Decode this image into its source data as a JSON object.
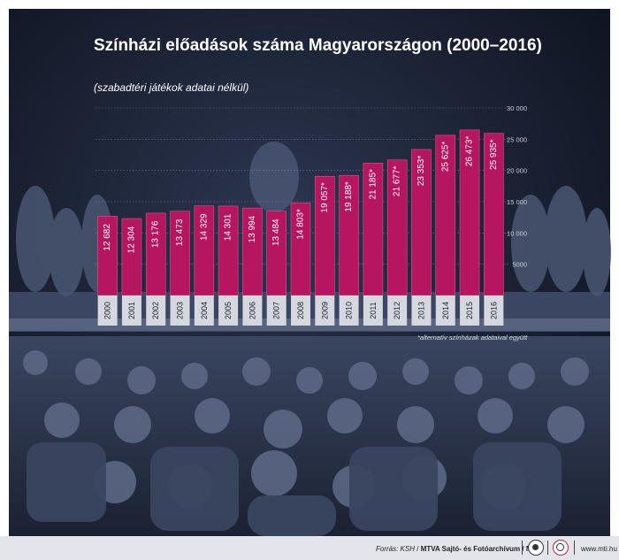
{
  "title": "Színházi előadások száma Magyarországon (2000–2016)",
  "subtitle": "(szabadtéri játékok adatai nélkül)",
  "footnote": "*alternatív színházak adataival együtt",
  "footer": {
    "source_label": "Forrás: KSH",
    "source_org": "MTVA Sajtó- és Fotóarchívum / MTI",
    "website": "www.mti.hu"
  },
  "colors": {
    "bar": "#b5165f",
    "bar_edge": "#e0508e",
    "axis_text": "#c8cdd8",
    "background": "#1b2233"
  },
  "chart_data": {
    "type": "bar",
    "title": "Színházi előadások száma Magyarországon (2000–2016)",
    "subtitle": "(szabadtéri játékok adatai nélkül)",
    "categories": [
      "2000",
      "2001",
      "2002",
      "2003",
      "2004",
      "2005",
      "2006",
      "2007",
      "2008",
      "2009",
      "2010",
      "2011",
      "2012",
      "2013",
      "2014",
      "2015",
      "2016"
    ],
    "values": [
      12682,
      12304,
      13176,
      13473,
      14329,
      14301,
      13994,
      13484,
      14803,
      19057,
      19188,
      21185,
      21677,
      23353,
      25625,
      26473,
      25935
    ],
    "value_labels": [
      "12 682",
      "12 304",
      "13 176",
      "13 473",
      "14 329",
      "14 301",
      "13 994",
      "13 484",
      "14 803*",
      "19 057*",
      "19 188*",
      "21 185*",
      "21 677*",
      "23 353*",
      "25 625*",
      "26 473*",
      "25 935*"
    ],
    "ylim": [
      0,
      30000
    ],
    "yticks": [
      5000,
      10000,
      15000,
      20000,
      25000,
      30000
    ],
    "ytick_labels": [
      "5000",
      "10 000",
      "15 000",
      "20 000",
      "25 000",
      "30 000"
    ],
    "grid": true,
    "xlabel": "",
    "ylabel": ""
  }
}
